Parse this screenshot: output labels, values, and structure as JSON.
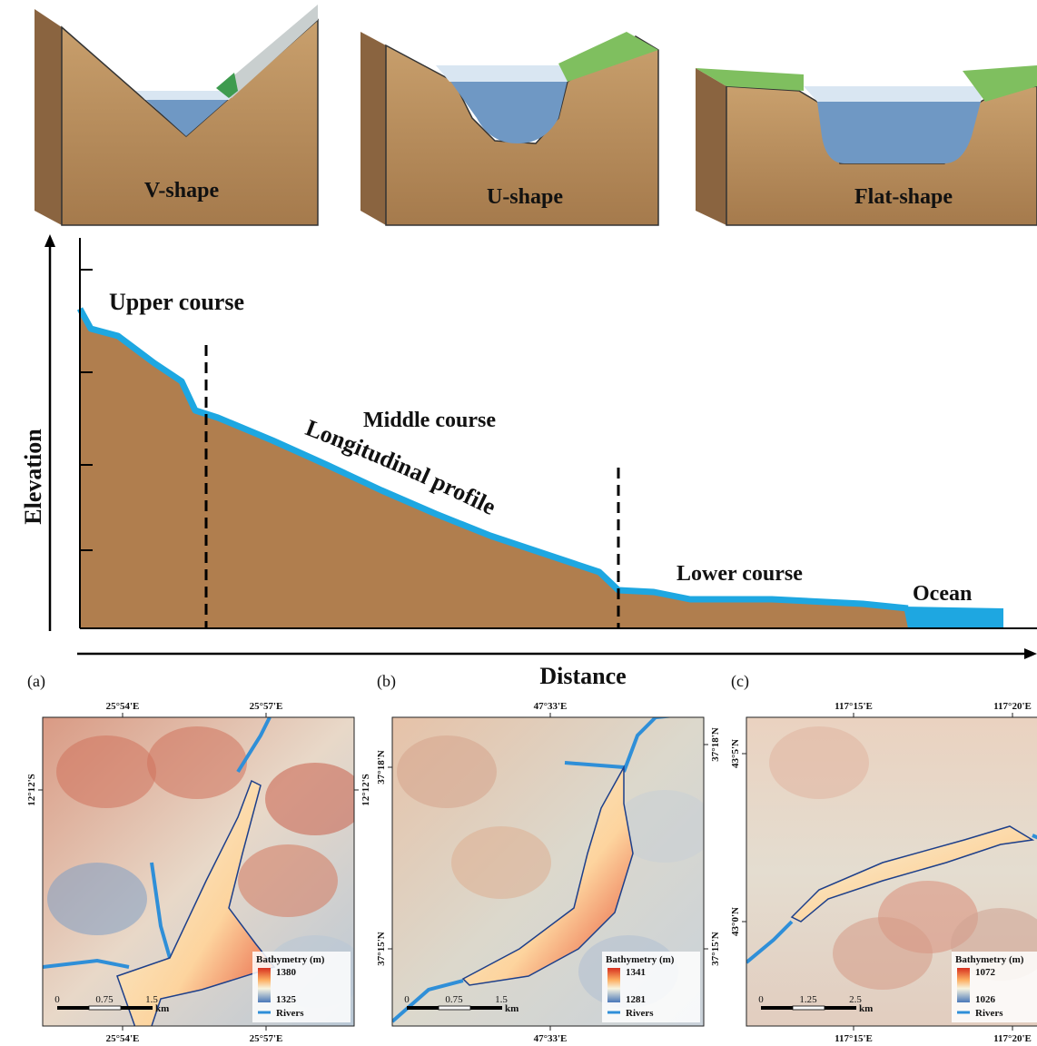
{
  "valleys": [
    {
      "label": "V-shape"
    },
    {
      "label": "U-shape"
    },
    {
      "label": "Flat-shape"
    }
  ],
  "profile": {
    "y_axis": "Elevation",
    "x_axis": "Distance",
    "curve_label": "Longitudinal profile",
    "sections": [
      "Upper course",
      "Middle course",
      "Lower course",
      "Ocean"
    ]
  },
  "maps": [
    {
      "panel": "(a)",
      "top_ticks": [
        "25°54'E",
        "25°57'E"
      ],
      "bottom_ticks": [
        "25°54'E",
        "25°57'E"
      ],
      "left_ticks": [
        "12°12'S"
      ],
      "right_ticks": [
        "12°12'S"
      ],
      "legend": {
        "title": "Bathymetry (m)",
        "high": "1380",
        "low": "1325",
        "rivers": "Rivers"
      },
      "scale": {
        "labels": [
          "0",
          "0.75",
          "1.5"
        ],
        "unit": "km"
      }
    },
    {
      "panel": "(b)",
      "top_ticks": [
        "47°33'E"
      ],
      "bottom_ticks": [
        "47°33'E"
      ],
      "left_ticks": [
        "37°18'N",
        "37°15'N"
      ],
      "right_ticks": [
        "37°18'N",
        "37°15'N"
      ],
      "legend": {
        "title": "Bathymetry (m)",
        "high": "1341",
        "low": "1281",
        "rivers": "Rivers"
      },
      "scale": {
        "labels": [
          "0",
          "0.75",
          "1.5"
        ],
        "unit": "km"
      }
    },
    {
      "panel": "(c)",
      "top_ticks": [
        "117°15'E",
        "117°20'E"
      ],
      "bottom_ticks": [
        "117°15'E",
        "117°20'E"
      ],
      "left_ticks": [
        "43°5'N",
        "43°0'N"
      ],
      "right_ticks": [],
      "legend": {
        "title": "Bathymetry (m)",
        "high": "1072",
        "low": "1026",
        "rivers": "Rivers"
      },
      "scale": {
        "labels": [
          "0",
          "1.25",
          "2.5"
        ],
        "unit": "km"
      }
    }
  ]
}
